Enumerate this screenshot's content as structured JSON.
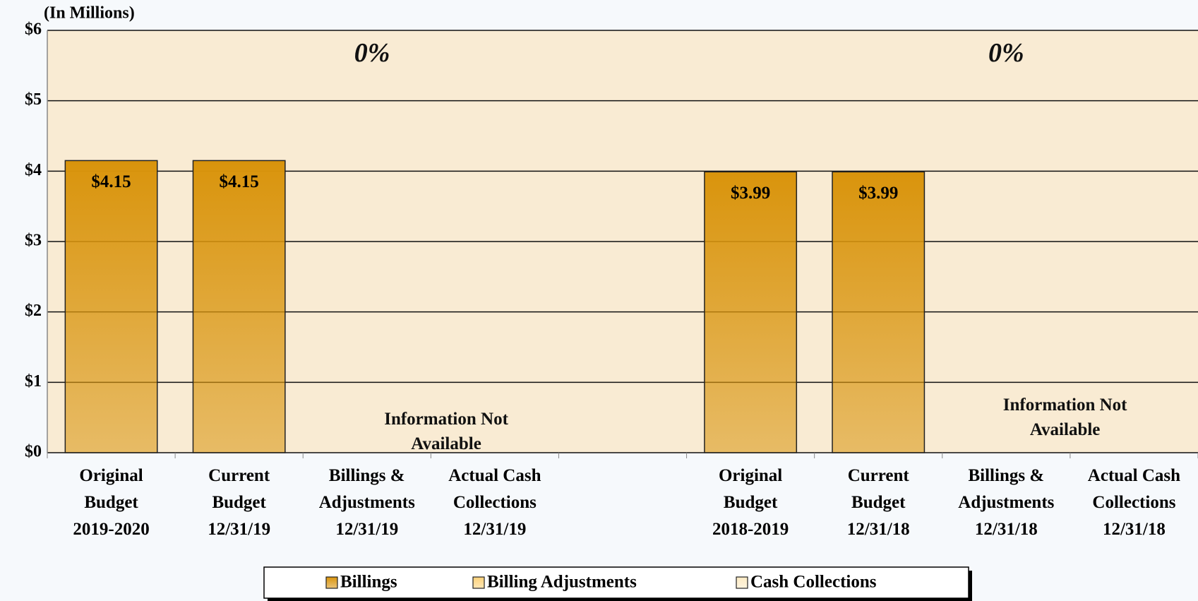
{
  "chart_data": {
    "type": "bar",
    "stacked": true,
    "y_label": "(In Millions)",
    "categories": [
      "Original\nBudget\n2019-2020",
      "Current\nBudget\n12/31/19",
      "Billings &\nAdjustments\n12/31/19",
      "Actual Cash\nCollections\n12/31/19",
      null,
      "Original\nBudget\n2018-2019",
      "Current\nBudget\n12/31/18",
      "Billings &\nAdjustments\n12/31/18",
      "Actual Cash\nCollections\n12/31/18"
    ],
    "series": [
      {
        "name": "Billings",
        "color": "#d9940c",
        "values": [
          4.15,
          4.15,
          null,
          null,
          null,
          3.99,
          3.99,
          null,
          null
        ],
        "value_labels": [
          "$4.15",
          "$4.15",
          null,
          null,
          null,
          "$3.99",
          "$3.99",
          null,
          null
        ]
      },
      {
        "name": "Billing Adjustments",
        "color": "#fdd27a",
        "values": [
          null,
          null,
          null,
          null,
          null,
          null,
          null,
          null,
          null
        ]
      },
      {
        "name": "Cash Collections",
        "color": "#fdebc4",
        "values": [
          null,
          null,
          null,
          null,
          null,
          null,
          null,
          null,
          null
        ]
      }
    ],
    "ylim": [
      0,
      6
    ],
    "yticks": [
      {
        "value": 0,
        "label": "$0"
      },
      {
        "value": 1,
        "label": "$1"
      },
      {
        "value": 2,
        "label": "$2"
      },
      {
        "value": 3,
        "label": "$3"
      },
      {
        "value": 4,
        "label": "$4"
      },
      {
        "value": 5,
        "label": "$5"
      },
      {
        "value": 6,
        "label": "$6"
      }
    ],
    "grid": true,
    "legend": "bottom",
    "annotations": [
      "0%",
      "0%",
      "Information Not\nAvailable",
      "Information Not\nAvailable"
    ]
  }
}
